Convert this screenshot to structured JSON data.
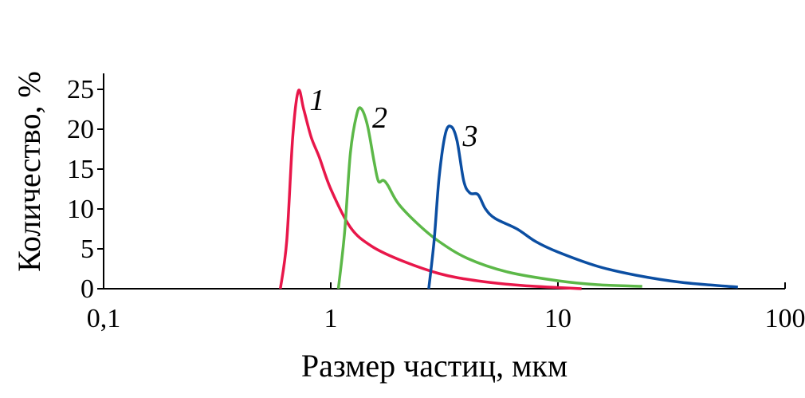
{
  "chart_data": {
    "type": "line",
    "title": "",
    "xlabel": "Размер частиц, мкм",
    "ylabel": "Количество, %",
    "xscale": "log",
    "xlim": [
      0.1,
      100
    ],
    "ylim": [
      0,
      27
    ],
    "xticks": [
      0.1,
      1,
      10,
      100
    ],
    "xtick_labels": [
      "0,1",
      "1",
      "10",
      "100"
    ],
    "yticks": [
      0,
      5,
      10,
      15,
      20,
      25
    ],
    "ytick_labels": [
      "0",
      "5",
      "10",
      "15",
      "20",
      "25"
    ],
    "grid": false,
    "series": [
      {
        "name": "1",
        "color": "#e8174a",
        "x": [
          0.6,
          0.64,
          0.68,
          0.72,
          0.76,
          0.82,
          0.89,
          1.0,
          1.22,
          1.5,
          1.98,
          3.0,
          4.4,
          7.0,
          12.7
        ],
        "y": [
          0,
          6,
          19,
          24.8,
          22.5,
          19,
          16.5,
          12.5,
          7.7,
          5.4,
          3.7,
          1.9,
          1.0,
          0.4,
          0
        ]
      },
      {
        "name": "2",
        "color": "#5cb848",
        "x": [
          1.08,
          1.15,
          1.22,
          1.3,
          1.36,
          1.45,
          1.55,
          1.62,
          1.7,
          1.78,
          1.98,
          2.4,
          2.97,
          4.0,
          6.0,
          10.0,
          15.0,
          23.5
        ],
        "y": [
          0,
          7,
          17,
          21.8,
          22.6,
          20.5,
          16,
          13.5,
          13.6,
          13.0,
          10.7,
          8.2,
          6.0,
          3.8,
          2.1,
          1.0,
          0.5,
          0.3
        ]
      },
      {
        "name": "3",
        "color": "#0b4ea2",
        "x": [
          2.7,
          2.85,
          3.0,
          3.2,
          3.4,
          3.6,
          3.85,
          4.1,
          4.45,
          4.8,
          5.3,
          6.6,
          8.0,
          10.0,
          15.0,
          22.0,
          35.0,
          62.0
        ],
        "y": [
          0,
          6,
          14,
          19.5,
          20.3,
          18.5,
          13.5,
          12.0,
          11.8,
          10.0,
          8.8,
          7.5,
          5.9,
          4.6,
          2.8,
          1.7,
          0.8,
          0.2
        ]
      }
    ]
  }
}
